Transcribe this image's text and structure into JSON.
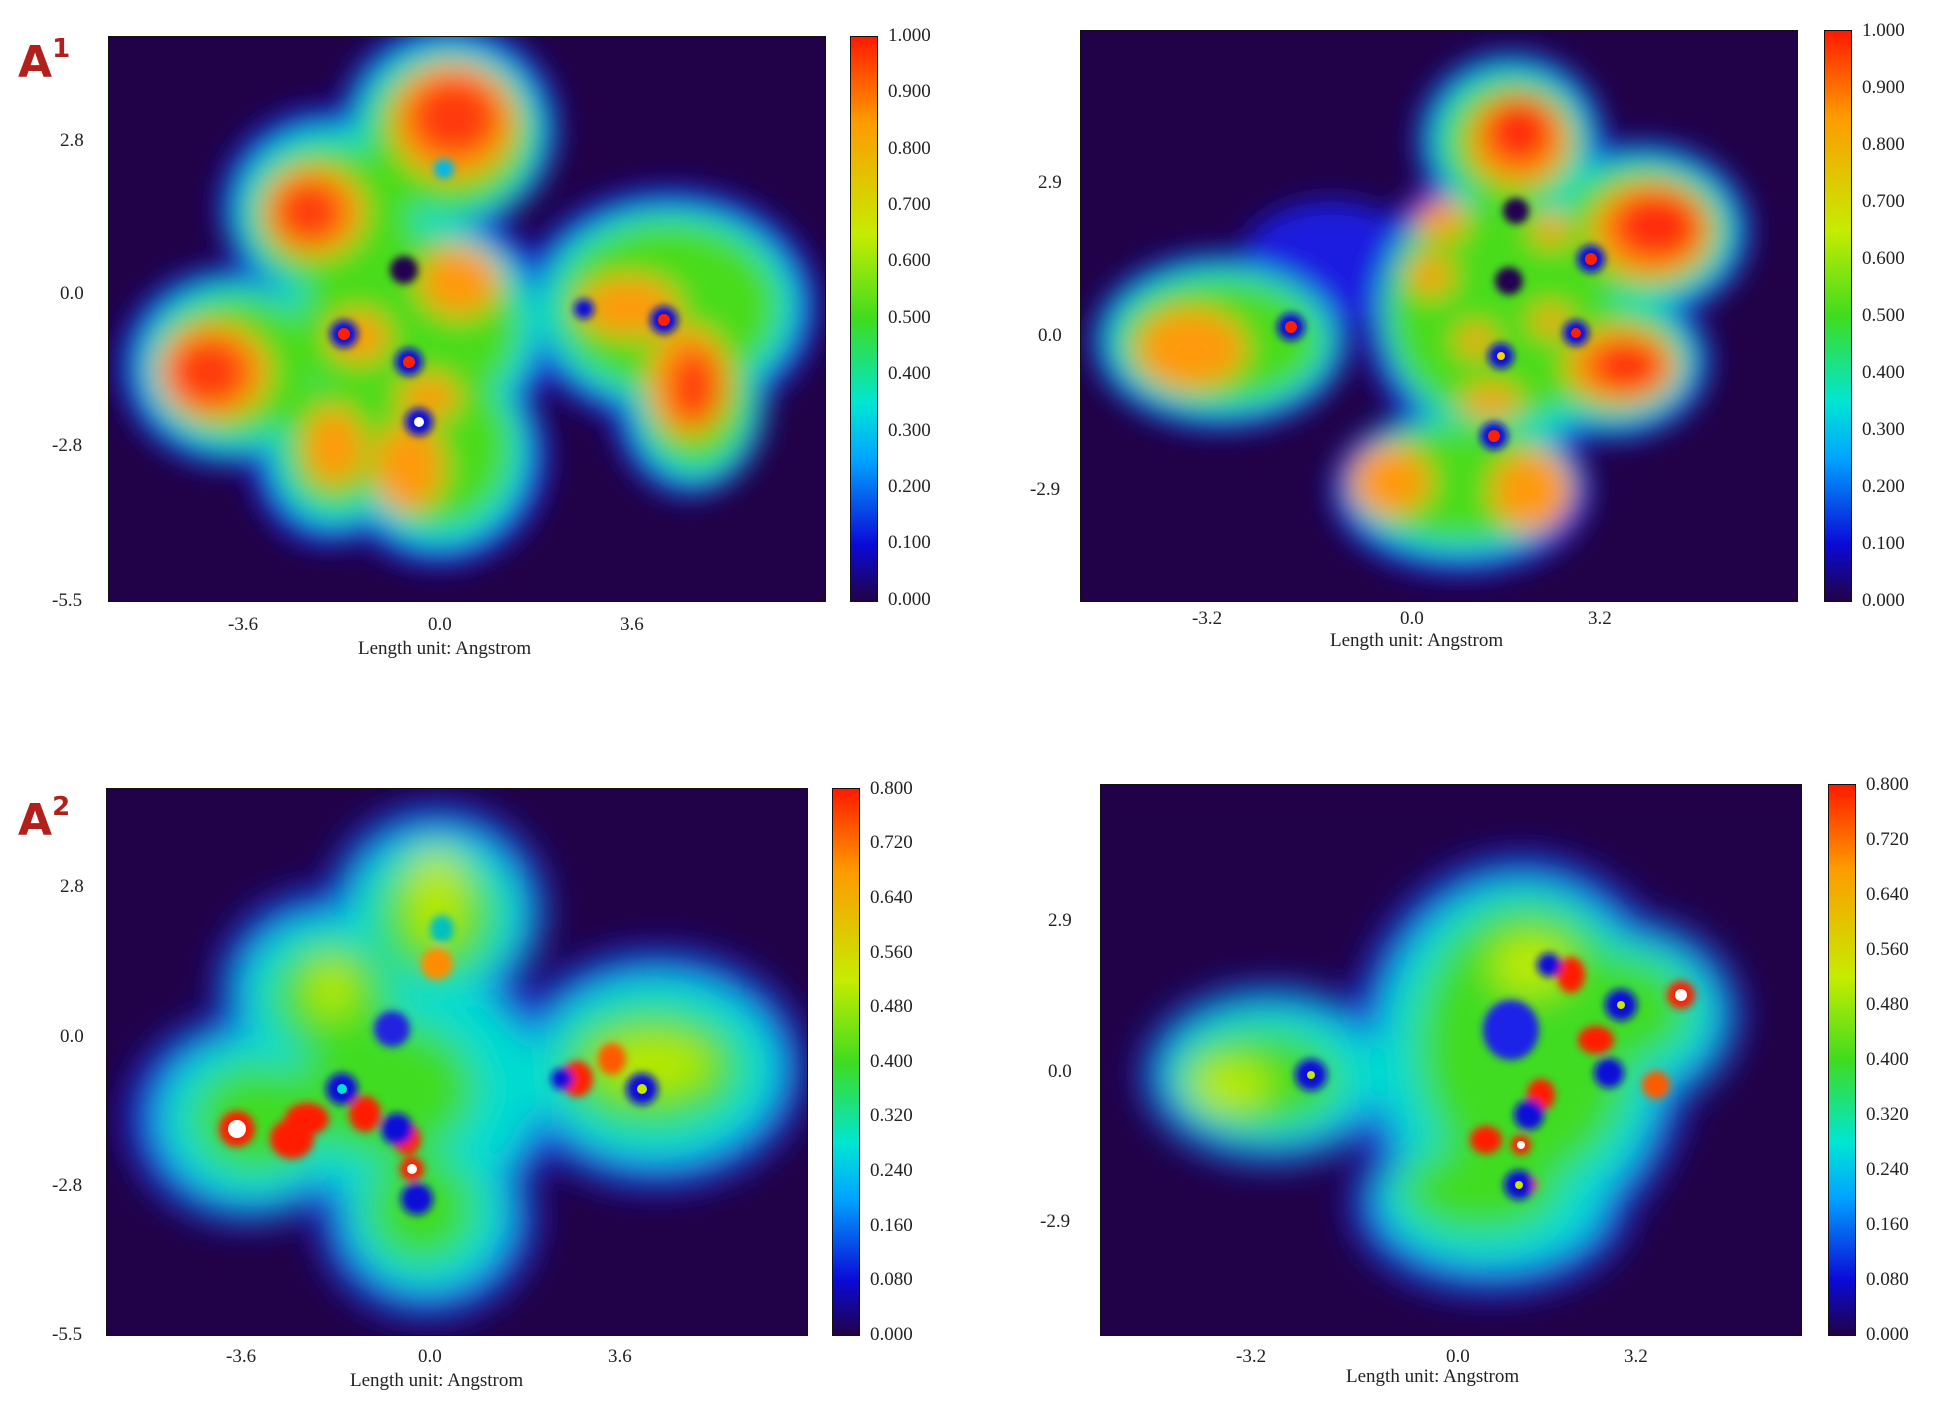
{
  "chart_data": [
    {
      "type": "heatmap",
      "panel_label": "A",
      "panel_label_sup": "1",
      "xlabel": "Length unit: Angstrom",
      "x_ticks": [
        "-3.6",
        "0.0",
        "3.6"
      ],
      "y_ticks": [
        "2.8",
        "0.0",
        "-2.8",
        "-5.5"
      ],
      "colorbar_ticks": [
        "1.000",
        "0.900",
        "0.800",
        "0.700",
        "0.600",
        "0.500",
        "0.400",
        "0.300",
        "0.200",
        "0.100",
        "0.000"
      ],
      "colorbar_range": [
        0,
        1.0
      ]
    },
    {
      "type": "heatmap",
      "panel_label": "",
      "panel_label_sup": "",
      "xlabel": "Length unit: Angstrom",
      "x_ticks": [
        "-3.2",
        "0.0",
        "3.2"
      ],
      "y_ticks": [
        "2.9",
        "0.0",
        "-2.9"
      ],
      "colorbar_ticks": [
        "1.000",
        "0.900",
        "0.800",
        "0.700",
        "0.600",
        "0.500",
        "0.400",
        "0.300",
        "0.200",
        "0.100",
        "0.000"
      ],
      "colorbar_range": [
        0,
        1.0
      ]
    },
    {
      "type": "heatmap",
      "panel_label": "A",
      "panel_label_sup": "2",
      "xlabel": "Length unit: Angstrom",
      "x_ticks": [
        "-3.6",
        "0.0",
        "3.6"
      ],
      "y_ticks": [
        "2.8",
        "0.0",
        "-2.8",
        "-5.5"
      ],
      "colorbar_ticks": [
        "0.800",
        "0.720",
        "0.640",
        "0.560",
        "0.480",
        "0.400",
        "0.320",
        "0.240",
        "0.160",
        "0.080",
        "0.000"
      ],
      "colorbar_range": [
        0,
        0.8
      ]
    },
    {
      "type": "heatmap",
      "panel_label": "",
      "panel_label_sup": "",
      "xlabel": "Length unit: Angstrom",
      "x_ticks": [
        "-3.2",
        "0.0",
        "3.2"
      ],
      "y_ticks": [
        "2.9",
        "0.0",
        "-2.9"
      ],
      "colorbar_ticks": [
        "0.800",
        "0.720",
        "0.640",
        "0.560",
        "0.480",
        "0.400",
        "0.320",
        "0.240",
        "0.160",
        "0.080",
        "0.000"
      ],
      "colorbar_range": [
        0,
        0.8
      ]
    }
  ],
  "colors": {
    "background": "#210248",
    "low": "#0a0ad8",
    "mid": "#3fdc1e",
    "high": "#ff1a00"
  }
}
